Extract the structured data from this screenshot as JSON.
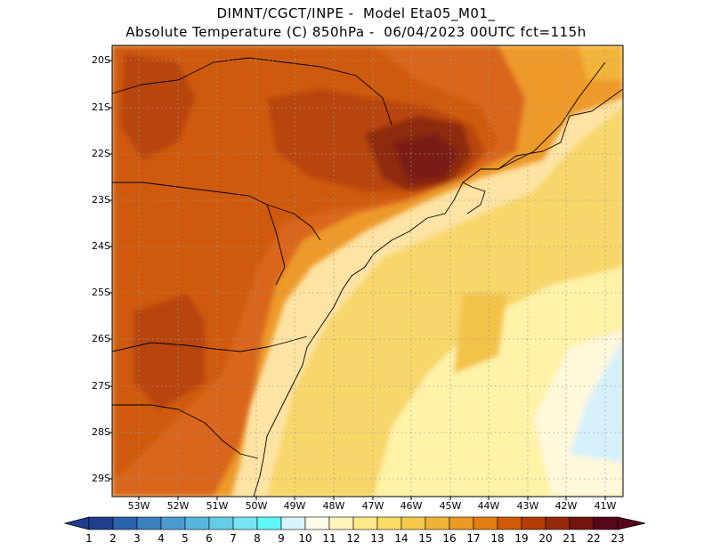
{
  "header": {
    "line1": "DIMNT/CGCT/INPE -  Model Eta05_M01_",
    "line2": "Absolute Temperature (C) 850hPa -  06/04/2023 00UTC fct=115h"
  },
  "map": {
    "lat_labels": [
      "20S",
      "21S",
      "22S",
      "23S",
      "24S",
      "25S",
      "26S",
      "27S",
      "28S",
      "29S"
    ],
    "lon_labels": [
      "53W",
      "52W",
      "51W",
      "50W",
      "49W",
      "48W",
      "47W",
      "46W",
      "45W",
      "44W",
      "43W",
      "42W",
      "41W"
    ],
    "grid": "on",
    "colors": {
      "sea_offshore": "#fde3a4",
      "coastal_plain": "#f7d66a",
      "interior_warm": "#cf5a10",
      "interior_hot": "#a9390b",
      "hotspot": "#7a1a14",
      "cold_patch": "#d6f1fb"
    }
  },
  "colorbar": {
    "labels": [
      "1",
      "2",
      "3",
      "4",
      "5",
      "6",
      "7",
      "8",
      "9",
      "10",
      "11",
      "12",
      "13",
      "14",
      "15",
      "16",
      "17",
      "18",
      "19",
      "20",
      "21",
      "22",
      "23"
    ],
    "colors": [
      "#1f3e8c",
      "#2a63ad",
      "#3b80bf",
      "#4a9cd0",
      "#56b6dd",
      "#65cde8",
      "#77e3f3",
      "#5ff6fa",
      "#d7f3fb",
      "#fffbe8",
      "#fff5b9",
      "#ffe98b",
      "#fbdc64",
      "#f6c94d",
      "#f0b33a",
      "#eb9a25",
      "#e17d12",
      "#d05a08",
      "#b43c06",
      "#94280a",
      "#72160f",
      "#57071a"
    ]
  }
}
